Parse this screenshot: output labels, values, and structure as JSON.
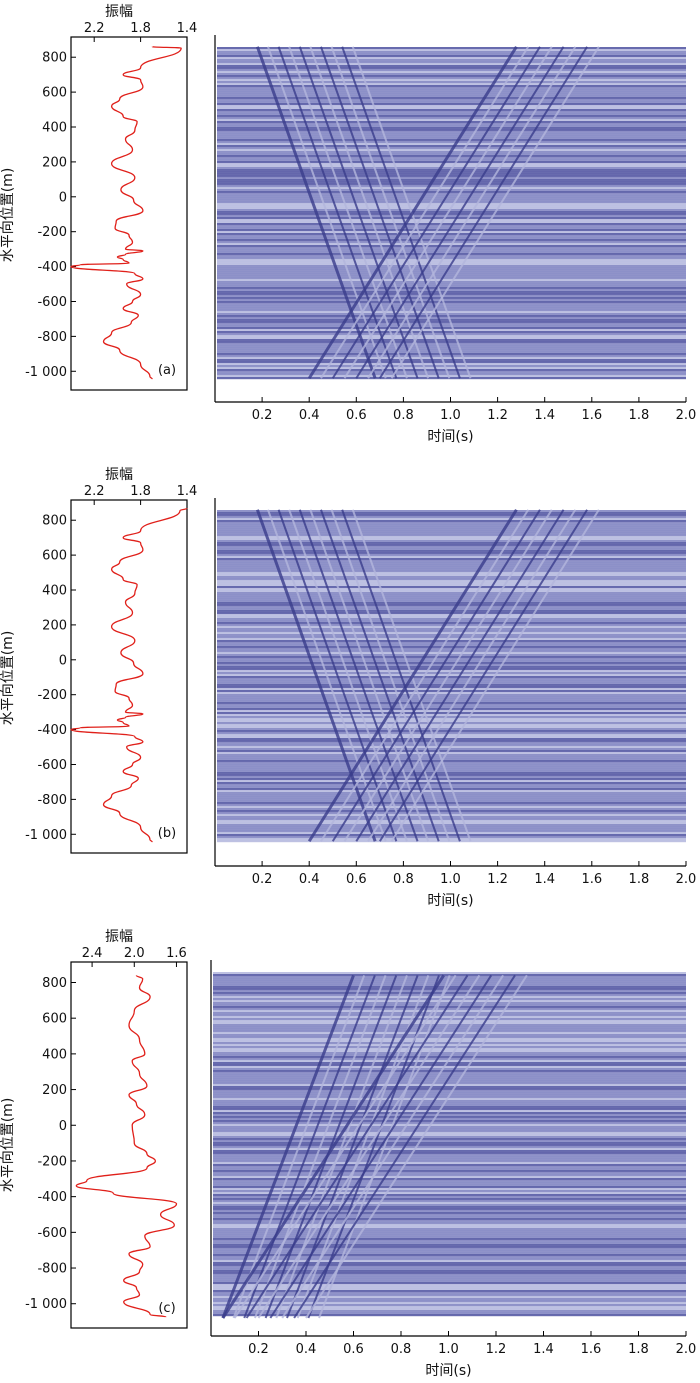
{
  "colors": {
    "amplitude_line": "#e0201a",
    "seismic_band_dark": "#4e51a0",
    "seismic_band_mid": "#7c80c0",
    "seismic_band_light": "#b3b6dd",
    "seismic_wave": "#3a3d8c",
    "axis": "#000000"
  },
  "chart_data": [
    {
      "type": "line",
      "panel": "(a)",
      "xlabel": "振幅",
      "ylabel": "水平向位置(m)",
      "xticks": [
        "2.2",
        "1.8",
        "1.4"
      ],
      "yticks": [
        "800",
        "600",
        "400",
        "200",
        "0",
        "-200",
        "-400",
        "-600",
        "-800",
        "-1 000"
      ],
      "x_reversed": true,
      "xlim": [
        2.4,
        1.4
      ],
      "ylim": [
        -1050,
        870
      ],
      "series": [
        {
          "x": [
            1.7,
            1.45,
            1.8,
            1.95,
            1.8,
            1.78,
            1.98,
            2.05,
            1.95,
            1.83,
            1.85,
            1.93,
            1.87,
            2.05,
            1.85,
            1.97,
            1.86,
            1.78,
            2.01,
            2.02,
            1.9,
            1.87,
            1.93,
            1.78,
            1.93,
            2.0,
            1.95,
            1.9,
            2.32,
            2.4,
            1.85,
            1.78,
            1.92,
            1.8,
            1.87,
            1.95,
            1.82,
            1.88,
            2.05,
            2.12,
            1.98,
            1.8,
            1.72,
            1.7
          ],
          "y": [
            860,
            852,
            740,
            700,
            670,
            630,
            560,
            520,
            460,
            430,
            380,
            330,
            270,
            190,
            110,
            40,
            -20,
            -80,
            -140,
            -180,
            -220,
            -260,
            -300,
            -310,
            -330,
            -345,
            -360,
            -380,
            -390,
            -400,
            -440,
            -470,
            -500,
            -560,
            -600,
            -640,
            -680,
            -720,
            -780,
            -830,
            -880,
            -960,
            -1030,
            -1045
          ]
        }
      ],
      "panel_right": {
        "type": "heatmap",
        "xlabel": "时间(s)",
        "xticks": [
          "0.2",
          "0.4",
          "0.6",
          "0.8",
          "1.0",
          "1.2",
          "1.4",
          "1.6",
          "1.8",
          "2.0"
        ],
        "xlim": [
          0.0,
          2.0
        ],
        "ylim": [
          -1050,
          870
        ],
        "direct_wave_arrival_s": [
          [
            860,
            0.18
          ],
          [
            -1040,
            0.68
          ]
        ],
        "reflected_wave_arrival_s": [
          [
            860,
            1.28
          ],
          [
            -1040,
            0.4
          ]
        ]
      }
    },
    {
      "type": "line",
      "panel": "(b)",
      "xlabel": "振幅",
      "ylabel": "水平向位置(m)",
      "xticks": [
        "2.2",
        "1.8",
        "1.4"
      ],
      "yticks": [
        "800",
        "600",
        "400",
        "200",
        "0",
        "-200",
        "-400",
        "-600",
        "-800",
        "-1 000"
      ],
      "x_reversed": true,
      "xlim": [
        2.4,
        1.4
      ],
      "ylim": [
        -1050,
        870
      ],
      "series": [
        {
          "x": [
            1.4,
            1.46,
            1.8,
            1.95,
            1.8,
            1.78,
            1.98,
            2.05,
            1.95,
            1.83,
            1.85,
            1.93,
            1.87,
            2.05,
            1.85,
            1.97,
            1.86,
            1.78,
            2.01,
            2.02,
            1.9,
            1.87,
            1.93,
            1.78,
            1.93,
            2.0,
            1.95,
            1.9,
            2.32,
            2.4,
            1.85,
            1.78,
            1.92,
            1.8,
            1.87,
            1.95,
            1.82,
            1.88,
            2.05,
            2.12,
            1.98,
            1.8,
            1.72,
            1.7
          ],
          "y": [
            868,
            855,
            740,
            700,
            670,
            630,
            560,
            520,
            460,
            430,
            380,
            330,
            270,
            190,
            110,
            40,
            -20,
            -80,
            -140,
            -180,
            -220,
            -260,
            -300,
            -310,
            -330,
            -345,
            -360,
            -380,
            -390,
            -400,
            -440,
            -470,
            -500,
            -560,
            -600,
            -640,
            -680,
            -720,
            -780,
            -830,
            -880,
            -960,
            -1030,
            -1045
          ]
        }
      ],
      "panel_right": {
        "type": "heatmap",
        "xlabel": "时间(s)",
        "xticks": [
          "0.2",
          "0.4",
          "0.6",
          "0.8",
          "1.0",
          "1.2",
          "1.4",
          "1.6",
          "1.8",
          "2.0"
        ],
        "xlim": [
          0.0,
          2.0
        ],
        "ylim": [
          -1050,
          870
        ],
        "direct_wave_arrival_s": [
          [
            860,
            0.18
          ],
          [
            -1040,
            0.68
          ]
        ],
        "reflected_wave_arrival_s": [
          [
            860,
            1.28
          ],
          [
            -1040,
            0.4
          ]
        ]
      }
    },
    {
      "type": "line",
      "panel": "(c)",
      "xlabel": "振幅",
      "ylabel": "水平向位置(m)",
      "xticks": [
        "2.4",
        "2.0",
        "1.6"
      ],
      "yticks": [
        "800",
        "600",
        "400",
        "200",
        "0",
        "-200",
        "-400",
        "-600",
        "-800",
        "-1 000"
      ],
      "x_reversed": true,
      "xlim": [
        2.6,
        1.5
      ],
      "ylim": [
        -1080,
        870
      ],
      "series": [
        {
          "x": [
            1.98,
            1.92,
            1.95,
            1.85,
            2.0,
            2.05,
            1.95,
            1.9,
            2.02,
            1.95,
            1.88,
            2.05,
            1.98,
            1.9,
            2.02,
            2.0,
            1.88,
            1.8,
            1.88,
            2.45,
            2.55,
            2.2,
            1.6,
            1.75,
            1.62,
            1.9,
            1.85,
            2.05,
            1.92,
            1.95,
            2.1,
            1.98,
            1.95,
            2.1,
            1.85,
            1.7
          ],
          "y": [
            840,
            820,
            770,
            720,
            640,
            560,
            480,
            400,
            360,
            290,
            220,
            170,
            120,
            60,
            0,
            -100,
            -160,
            -200,
            -240,
            -310,
            -340,
            -380,
            -440,
            -500,
            -560,
            -620,
            -680,
            -720,
            -780,
            -820,
            -870,
            -910,
            -950,
            -990,
            -1060,
            -1075
          ]
        }
      ],
      "panel_right": {
        "type": "heatmap",
        "xlabel": "时间(s)",
        "xticks": [
          "0.2",
          "0.4",
          "0.6",
          "0.8",
          "1.0",
          "1.2",
          "1.4",
          "1.6",
          "1.8",
          "2.0"
        ],
        "xlim": [
          0.0,
          2.0
        ],
        "ylim": [
          -1080,
          870
        ],
        "direct_wave_arrival_s": [
          [
            -1080,
            0.05
          ],
          [
            840,
            0.6
          ]
        ],
        "reflected_wave_arrival_s": [
          [
            -1080,
            0.05
          ],
          [
            840,
            0.98
          ]
        ]
      }
    }
  ]
}
